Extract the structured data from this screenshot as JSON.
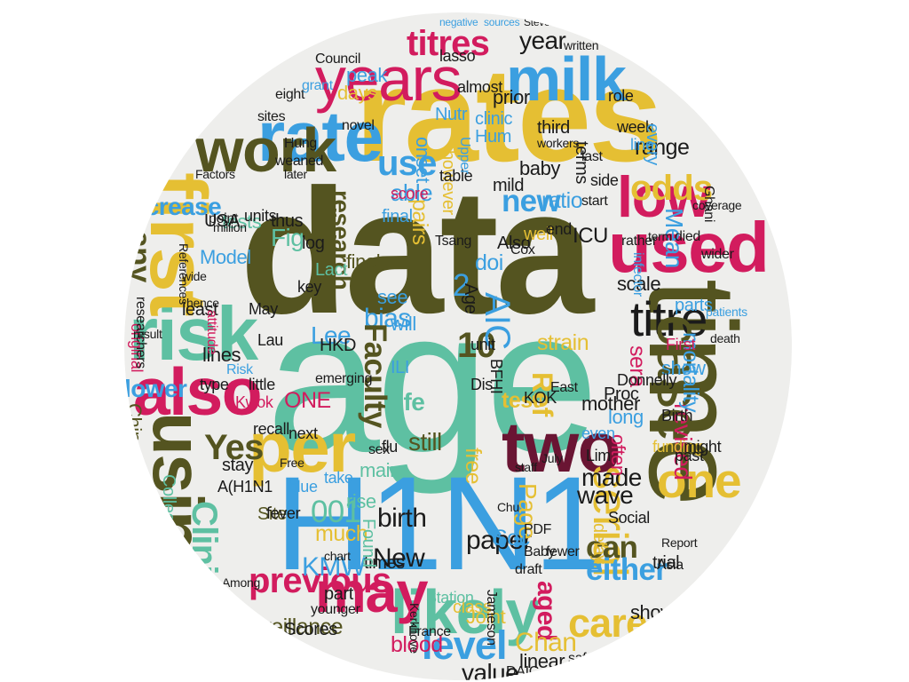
{
  "palette": {
    "olive": "#545420",
    "teal": "#5ec0a2",
    "blue": "#3b9fe0",
    "gold": "#e5bf33",
    "crimson": "#d21c5e",
    "wine": "#6a1533",
    "black": "#1b1b1b",
    "disc": "#eeeeec"
  },
  "words": [
    {
      "text": "data",
      "color": "olive"
    },
    {
      "text": "age",
      "color": "teal"
    },
    {
      "text": "H1N1",
      "color": "blue"
    },
    {
      "text": "rates",
      "color": "gold"
    },
    {
      "text": "time",
      "color": "olive"
    },
    {
      "text": "years",
      "color": "crimson"
    },
    {
      "text": "milk",
      "color": "blue"
    },
    {
      "text": "used",
      "color": "crimson"
    },
    {
      "text": "risk",
      "color": "teal"
    },
    {
      "text": "first",
      "color": "gold"
    },
    {
      "text": "rate",
      "color": "blue"
    },
    {
      "text": "work",
      "color": "olive"
    },
    {
      "text": "low",
      "color": "crimson"
    },
    {
      "text": "titre",
      "color": "black"
    },
    {
      "text": "also",
      "color": "crimson"
    },
    {
      "text": "per",
      "color": "gold"
    },
    {
      "text": "using",
      "color": "olive"
    },
    {
      "text": "two",
      "color": "wine"
    },
    {
      "text": "one",
      "color": "gold"
    },
    {
      "text": "case",
      "color": "olive"
    },
    {
      "text": "likely",
      "color": "teal"
    },
    {
      "text": "may",
      "color": "crimson"
    },
    {
      "text": "level",
      "color": "blue"
    },
    {
      "text": "serial",
      "color": "gold"
    },
    {
      "text": "titres",
      "color": "crimson"
    },
    {
      "text": "odds",
      "color": "gold"
    },
    {
      "text": "use",
      "color": "blue"
    },
    {
      "text": "increase",
      "color": "blue"
    },
    {
      "text": "many",
      "color": "olive"
    },
    {
      "text": "previous",
      "color": "crimson"
    },
    {
      "text": "Clinical",
      "color": "teal"
    },
    {
      "text": "Yes",
      "color": "olive"
    },
    {
      "text": "new",
      "color": "blue"
    },
    {
      "text": "10",
      "color": "olive"
    },
    {
      "text": "2",
      "color": "blue"
    },
    {
      "text": "year",
      "color": "black"
    },
    {
      "text": "peak",
      "color": "blue"
    },
    {
      "text": "Fig",
      "color": "teal"
    },
    {
      "text": "research",
      "color": "olive"
    },
    {
      "text": "bias",
      "color": "blue"
    },
    {
      "text": "final",
      "color": "blue"
    },
    {
      "text": "pairs",
      "color": "gold"
    },
    {
      "text": "Mean",
      "color": "blue"
    },
    {
      "text": "range",
      "color": "black"
    },
    {
      "text": "ratio",
      "color": "blue"
    },
    {
      "text": "able",
      "color": "blue"
    },
    {
      "text": "days",
      "color": "gold"
    },
    {
      "text": "tests",
      "color": "teal"
    },
    {
      "text": "Model",
      "color": "blue"
    },
    {
      "text": "lower",
      "color": "blue"
    },
    {
      "text": "lines",
      "color": "black"
    },
    {
      "text": "Lee",
      "color": "blue"
    },
    {
      "text": "Faculty",
      "color": "olive"
    },
    {
      "text": "AIC",
      "color": "blue"
    },
    {
      "text": "strain",
      "color": "gold"
    },
    {
      "text": "sera",
      "color": "crimson"
    },
    {
      "text": "scale",
      "color": "black"
    },
    {
      "text": "test",
      "color": "gold"
    },
    {
      "text": "Ref",
      "color": "gold"
    },
    {
      "text": "life",
      "color": "teal"
    },
    {
      "text": "ONE",
      "color": "crimson"
    },
    {
      "text": "still",
      "color": "olive"
    },
    {
      "text": "birth",
      "color": "black"
    },
    {
      "text": "made",
      "color": "black"
    },
    {
      "text": "wave",
      "color": "black"
    },
    {
      "text": "can",
      "color": "olive"
    },
    {
      "text": "either",
      "color": "blue"
    },
    {
      "text": "care",
      "color": "gold"
    },
    {
      "text": "aged",
      "color": "crimson"
    },
    {
      "text": "Chan",
      "color": "gold"
    },
    {
      "text": "showed",
      "color": "black"
    },
    {
      "text": "value",
      "color": "black"
    },
    {
      "text": "free",
      "color": "gold"
    },
    {
      "text": "paper",
      "color": "black"
    },
    {
      "text": "Soc",
      "color": "blue"
    },
    {
      "text": "Page",
      "color": "gold"
    },
    {
      "text": "New",
      "color": "black"
    },
    {
      "text": "KMW",
      "color": "blue"
    },
    {
      "text": "much",
      "color": "gold"
    },
    {
      "text": "001",
      "color": "teal"
    },
    {
      "text": "Site",
      "color": "olive"
    },
    {
      "text": "Chinese",
      "color": "olive"
    },
    {
      "text": "College",
      "color": "teal"
    },
    {
      "text": "surveillance",
      "color": "olive"
    },
    {
      "text": "Scores",
      "color": "black"
    },
    {
      "text": "ICU",
      "color": "black"
    },
    {
      "text": "Also",
      "color": "black"
    },
    {
      "text": "revised",
      "color": "crimson"
    },
    {
      "text": "mortality",
      "color": "blue"
    },
    {
      "text": "parts",
      "color": "blue"
    },
    {
      "text": "show",
      "color": "blue"
    },
    {
      "text": "mother",
      "color": "black"
    },
    {
      "text": "Proc",
      "color": "black"
    },
    {
      "text": "Joint",
      "color": "gold"
    },
    {
      "text": "class",
      "color": "gold"
    },
    {
      "text": "linear",
      "color": "black"
    },
    {
      "text": "blood",
      "color": "crimson"
    },
    {
      "text": "funding",
      "color": "gold"
    },
    {
      "text": "often",
      "color": "crimson"
    },
    {
      "text": "Lau",
      "color": "black"
    },
    {
      "text": "stay",
      "color": "black"
    },
    {
      "text": "type",
      "color": "black"
    },
    {
      "text": "least",
      "color": "black"
    },
    {
      "text": "May",
      "color": "black"
    },
    {
      "text": "USA",
      "color": "black"
    },
    {
      "text": "units",
      "color": "black"
    },
    {
      "text": "log",
      "color": "black"
    },
    {
      "text": "thus",
      "color": "black"
    },
    {
      "text": "see",
      "color": "blue"
    },
    {
      "text": "will",
      "color": "blue"
    },
    {
      "text": "doi",
      "color": "blue"
    },
    {
      "text": "main",
      "color": "teal"
    },
    {
      "text": "rise",
      "color": "teal"
    },
    {
      "text": "almost",
      "color": "black"
    },
    {
      "text": "lasso",
      "color": "black"
    },
    {
      "text": "Council",
      "color": "black"
    },
    {
      "text": "prior",
      "color": "black"
    },
    {
      "text": "baby",
      "color": "black"
    },
    {
      "text": "onset",
      "color": "blue"
    },
    {
      "text": "clinic",
      "color": "blue"
    },
    {
      "text": "Nutr",
      "color": "blue"
    },
    {
      "text": "Hum",
      "color": "blue"
    },
    {
      "text": "score",
      "color": "crimson"
    },
    {
      "text": "however",
      "color": "gold"
    },
    {
      "text": "third",
      "color": "black"
    },
    {
      "text": "table",
      "color": "black"
    },
    {
      "text": "Lact",
      "color": "teal"
    },
    {
      "text": "final",
      "color": "olive"
    },
    {
      "text": "Age",
      "color": "black"
    },
    {
      "text": "ILI",
      "color": "blue"
    },
    {
      "text": "Donnelly",
      "color": "black"
    },
    {
      "text": "Birth",
      "color": "black"
    },
    {
      "text": "First",
      "color": "crimson"
    },
    {
      "text": "long",
      "color": "blue"
    },
    {
      "text": "trial",
      "color": "black"
    },
    {
      "text": "delay",
      "color": "gold"
    },
    {
      "text": "Social",
      "color": "black"
    },
    {
      "text": "might",
      "color": "black"
    },
    {
      "text": "past",
      "color": "black"
    },
    {
      "text": "Kwok",
      "color": "crimson"
    },
    {
      "text": "recall",
      "color": "black"
    },
    {
      "text": "next",
      "color": "black"
    },
    {
      "text": "take",
      "color": "blue"
    },
    {
      "text": "times",
      "color": "black"
    },
    {
      "text": "fever",
      "color": "black"
    },
    {
      "text": "blue",
      "color": "blue"
    },
    {
      "text": "HKD",
      "color": "black"
    },
    {
      "text": "Dis",
      "color": "black"
    },
    {
      "text": "unit",
      "color": "black"
    },
    {
      "text": "KOK",
      "color": "black"
    },
    {
      "text": "flu",
      "color": "black"
    },
    {
      "text": "well",
      "color": "gold"
    },
    {
      "text": "key",
      "color": "black"
    },
    {
      "text": "end",
      "color": "black"
    },
    {
      "text": "part",
      "color": "black"
    },
    {
      "text": "younger",
      "color": "black"
    },
    {
      "text": "sex",
      "color": "black"
    },
    {
      "text": "A(H1N1",
      "color": "black"
    },
    {
      "text": "Found",
      "color": "teal"
    },
    {
      "text": "Lim",
      "color": "black"
    },
    {
      "text": "even",
      "color": "blue"
    },
    {
      "text": "mild",
      "color": "black"
    },
    {
      "text": "terms",
      "color": "black"
    },
    {
      "text": "last",
      "color": "black"
    },
    {
      "text": "week",
      "color": "black"
    },
    {
      "text": "role",
      "color": "black"
    },
    {
      "text": "eight",
      "color": "black"
    },
    {
      "text": "sites",
      "color": "black"
    },
    {
      "text": "grant",
      "color": "blue"
    },
    {
      "text": "written",
      "color": "black"
    },
    {
      "text": "side",
      "color": "black"
    },
    {
      "text": "line",
      "color": "blue"
    },
    {
      "text": "every",
      "color": "blue"
    },
    {
      "text": "start",
      "color": "black"
    },
    {
      "text": "Ghani",
      "color": "black"
    },
    {
      "text": "coverage",
      "color": "black"
    },
    {
      "text": "died",
      "color": "black"
    },
    {
      "text": "rather",
      "color": "black"
    },
    {
      "text": "term",
      "color": "black"
    },
    {
      "text": "wider",
      "color": "black"
    },
    {
      "text": "death",
      "color": "black"
    },
    {
      "text": "emerging",
      "color": "black"
    },
    {
      "text": "little",
      "color": "black"
    },
    {
      "text": "Risk",
      "color": "blue"
    },
    {
      "text": "original",
      "color": "crimson"
    },
    {
      "text": "point",
      "color": "black"
    },
    {
      "text": "weaned",
      "color": "black"
    },
    {
      "text": "later",
      "color": "black"
    },
    {
      "text": "Factors",
      "color": "black"
    },
    {
      "text": "million",
      "color": "black"
    },
    {
      "text": "Hung",
      "color": "black"
    },
    {
      "text": "novel",
      "color": "black"
    },
    {
      "text": "Cox",
      "color": "black"
    },
    {
      "text": "wide",
      "color": "black"
    },
    {
      "text": "hence",
      "color": "black"
    },
    {
      "text": "result",
      "color": "black"
    },
    {
      "text": "researchers",
      "color": "black"
    },
    {
      "text": "References",
      "color": "black"
    },
    {
      "text": "Among",
      "color": "black"
    },
    {
      "text": "chart",
      "color": "black"
    },
    {
      "text": "PDF",
      "color": "black"
    },
    {
      "text": "fewer",
      "color": "black"
    },
    {
      "text": "Asia",
      "color": "black"
    },
    {
      "text": "Report",
      "color": "black"
    },
    {
      "text": "safety",
      "color": "black"
    },
    {
      "text": "Baby",
      "color": "black"
    },
    {
      "text": "draft",
      "color": "black"
    },
    {
      "text": "DAIC",
      "color": "black"
    },
    {
      "text": "Chu",
      "color": "black"
    },
    {
      "text": "Free",
      "color": "black"
    },
    {
      "text": "Station",
      "color": "teal"
    },
    {
      "text": "France",
      "color": "black"
    },
    {
      "text": "Jameson",
      "color": "black"
    },
    {
      "text": "Kerkhove",
      "color": "black"
    },
    {
      "text": "staff",
      "color": "black"
    },
    {
      "text": "July",
      "color": "black"
    },
    {
      "text": "East",
      "color": "black"
    },
    {
      "text": "BFHI",
      "color": "black"
    },
    {
      "text": "negative",
      "color": "blue"
    },
    {
      "text": "sources",
      "color": "blue"
    },
    {
      "text": "Steven",
      "color": "black"
    },
    {
      "text": "attitude",
      "color": "crimson"
    },
    {
      "text": "Tsang",
      "color": "black"
    },
    {
      "text": "Upper",
      "color": "blue"
    },
    {
      "text": "workers",
      "color": "black"
    },
    {
      "text": "infector",
      "color": "blue"
    },
    {
      "text": "patients",
      "color": "blue"
    }
  ]
}
